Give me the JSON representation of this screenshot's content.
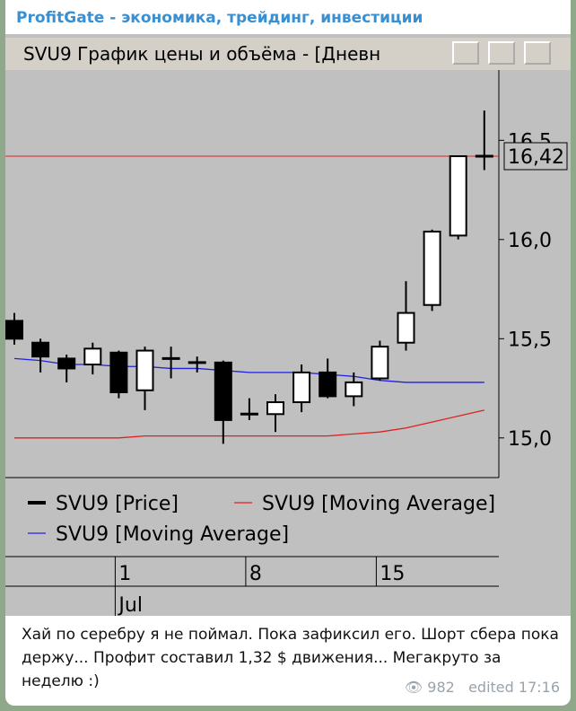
{
  "channel": "ProfitGate - экономика, трейдинг, инвестиции",
  "window_title": "SVU9 График цены и объёма - [Дневн",
  "chart_data": {
    "type": "candlestick",
    "categories": [
      null,
      null,
      null,
      null,
      "1",
      null,
      null,
      null,
      null,
      "8",
      null,
      null,
      null,
      null,
      "15",
      null,
      null,
      null,
      null
    ],
    "x_group_label": "Jul",
    "series": [
      {
        "name": "SVU9 [Price]",
        "color": "#000000",
        "open": [
          15.59,
          15.48,
          15.4,
          15.37,
          15.43,
          15.24,
          15.4,
          15.38,
          15.38,
          15.12,
          15.12,
          15.18,
          15.33,
          15.21,
          15.3,
          15.48,
          15.67,
          16.02,
          16.42
        ],
        "high": [
          15.63,
          15.5,
          15.42,
          15.48,
          15.44,
          15.46,
          15.46,
          15.41,
          15.39,
          15.2,
          15.22,
          15.37,
          15.4,
          15.33,
          15.49,
          15.79,
          16.05,
          16.42,
          16.65
        ],
        "low": [
          15.47,
          15.33,
          15.28,
          15.32,
          15.2,
          15.14,
          15.3,
          15.33,
          14.97,
          15.09,
          15.03,
          15.13,
          15.2,
          15.16,
          15.29,
          15.44,
          15.64,
          16.0,
          16.35
        ],
        "close": [
          15.5,
          15.41,
          15.35,
          15.45,
          15.23,
          15.44,
          15.4,
          15.38,
          15.09,
          15.12,
          15.18,
          15.33,
          15.21,
          15.28,
          15.46,
          15.63,
          16.04,
          16.42,
          16.42
        ]
      },
      {
        "name": "SVU9 [Moving Average]",
        "color": "#e02020",
        "values": [
          15.0,
          15.0,
          15.0,
          15.0,
          15.0,
          15.01,
          15.01,
          15.01,
          15.01,
          15.01,
          15.01,
          15.01,
          15.01,
          15.02,
          15.03,
          15.05,
          15.08,
          15.11,
          15.14
        ]
      },
      {
        "name": "SVU9 [Moving Average]",
        "color": "#2020e0",
        "values": [
          15.4,
          15.39,
          15.37,
          15.37,
          15.36,
          15.36,
          15.35,
          15.35,
          15.34,
          15.33,
          15.33,
          15.33,
          15.32,
          15.31,
          15.29,
          15.28,
          15.28,
          15.28,
          15.28
        ]
      }
    ],
    "price_line": 16.42,
    "price_line_label": "16,42",
    "price_line_color": "#e02020",
    "ylim": [
      14.8,
      16.8
    ],
    "yticks": [
      {
        "value": 15,
        "label": "15,0"
      },
      {
        "value": 15.5,
        "label": "15,5"
      },
      {
        "value": 16,
        "label": "16,0"
      },
      {
        "value": 16.5,
        "label": "16,5"
      }
    ]
  },
  "message": {
    "text": "Хай по серебру я не поймал. Пока зафиксил его. Шорт сбера пока держу... Профит составил 1,32 $ движения... Мегакруто за неделю :)",
    "views": 982,
    "edited": "edited 17:16"
  }
}
